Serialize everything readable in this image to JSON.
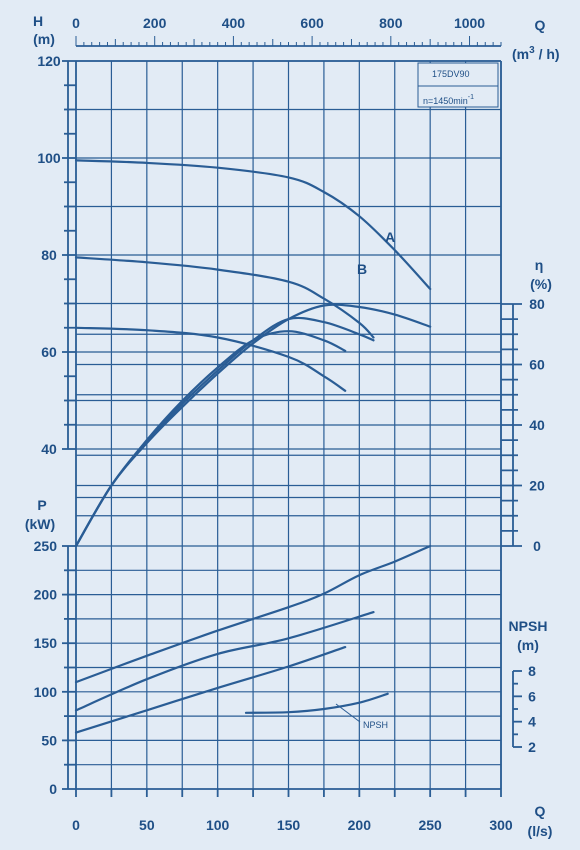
{
  "chart_data": {
    "type": "line",
    "model": "175DV90",
    "speed_label": "n=1450min",
    "speed_exp": "-1",
    "axes": {
      "H": {
        "label1": "H",
        "label2": "(m)",
        "ticks": [
          40,
          60,
          80,
          100,
          120
        ],
        "range": [
          20,
          120
        ]
      },
      "eta": {
        "label1": "η",
        "label2": "(%)",
        "ticks": [
          0,
          20,
          40,
          60,
          80
        ],
        "range": [
          0,
          80
        ]
      },
      "P": {
        "label1": "P",
        "label2": "(kW)",
        "ticks": [
          0,
          50,
          100,
          150,
          200,
          250
        ],
        "range": [
          0,
          250
        ]
      },
      "NPSH": {
        "label1": "NPSH",
        "label2": "(m)",
        "ticks": [
          2,
          4,
          6,
          8
        ],
        "range": [
          2,
          8
        ]
      },
      "Qls": {
        "label1": "Q",
        "label2": "(l/s)",
        "ticks": [
          0,
          50,
          100,
          150,
          200,
          250,
          300
        ],
        "range": [
          0,
          300
        ]
      },
      "Qm3h": {
        "label1": "Q",
        "label2": "(m",
        "label2_sup": "3",
        "label2_end": " / h)",
        "ticks": [
          0,
          200,
          400,
          600,
          800,
          1000
        ],
        "range": [
          0,
          1080
        ]
      }
    },
    "curve_labels": {
      "A": "A",
      "B": "B",
      "npsh": "NPSH"
    },
    "head_curves": [
      {
        "name": "",
        "x": [
          0,
          50,
          100,
          150,
          175,
          200,
          225,
          250
        ],
        "y": [
          99.5,
          99,
          98,
          96,
          93,
          88,
          81,
          73
        ]
      },
      {
        "name": "A",
        "x": [
          0,
          50,
          100,
          150,
          175,
          200,
          210
        ],
        "y": [
          79.5,
          78.5,
          77,
          74.5,
          71,
          66,
          63
        ]
      },
      {
        "name": "B",
        "x": [
          0,
          50,
          100,
          150,
          175,
          190
        ],
        "y": [
          65,
          64.5,
          63,
          59,
          55,
          52
        ]
      }
    ],
    "efficiency_curves": [
      {
        "name": "",
        "x": [
          0,
          25,
          50,
          75,
          100,
          125,
          150,
          175,
          200,
          225,
          250
        ],
        "y": [
          0,
          20,
          34,
          46,
          57,
          67,
          75,
          79.5,
          79,
          76.5,
          72.5
        ]
      },
      {
        "name": "A",
        "x": [
          0,
          25,
          50,
          75,
          100,
          125,
          150,
          175,
          200,
          210
        ],
        "y": [
          0,
          20,
          34.5,
          47,
          58,
          68,
          75,
          74,
          70,
          68
        ]
      },
      {
        "name": "B",
        "x": [
          0,
          25,
          50,
          75,
          100,
          125,
          150,
          175,
          190
        ],
        "y": [
          0,
          20,
          35,
          48,
          59,
          68,
          71,
          68,
          64.5
        ]
      }
    ],
    "power_curves": [
      {
        "name": "",
        "x": [
          0,
          50,
          100,
          150,
          175,
          200,
          225,
          250
        ],
        "y": [
          110,
          137,
          163,
          187,
          201,
          220,
          234,
          250
        ]
      },
      {
        "name": "A",
        "x": [
          0,
          50,
          100,
          150,
          210
        ],
        "y": [
          81,
          113,
          139,
          155,
          182
        ]
      },
      {
        "name": "B",
        "x": [
          0,
          50,
          100,
          150,
          190
        ],
        "y": [
          58,
          81,
          104,
          126,
          146
        ]
      }
    ],
    "npsh_curve": {
      "x": [
        120,
        150,
        175,
        200,
        220
      ],
      "y": [
        4.7,
        4.75,
        5.0,
        5.5,
        6.2
      ]
    }
  }
}
